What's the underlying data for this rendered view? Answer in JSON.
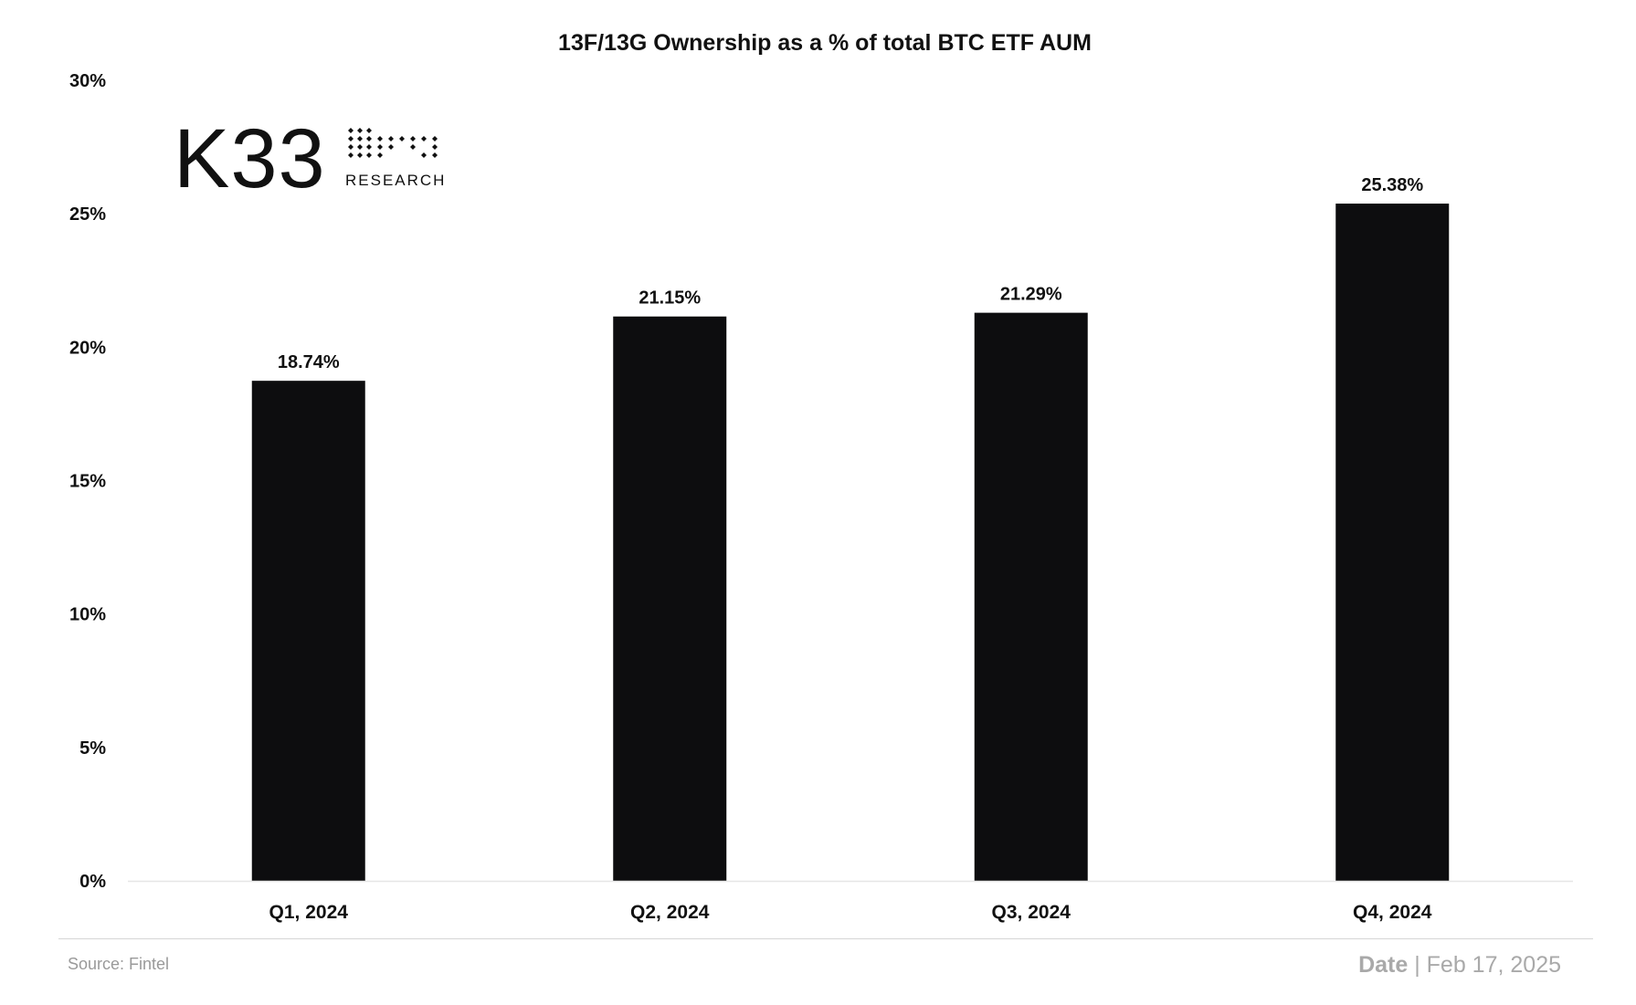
{
  "chart_data": {
    "type": "bar",
    "title": "13F/13G Ownership as a % of total BTC ETF AUM",
    "categories": [
      "Q1, 2024",
      "Q2, 2024",
      "Q3, 2024",
      "Q4, 2024"
    ],
    "values": [
      18.74,
      21.15,
      21.29,
      25.38
    ],
    "value_labels": [
      "18.74%",
      "21.15%",
      "21.29%",
      "25.38%"
    ],
    "xlabel": "",
    "ylabel": "",
    "ylim": [
      0,
      30
    ],
    "yticks": [
      0,
      5,
      10,
      15,
      20,
      25,
      30
    ],
    "ytick_labels": [
      "0%",
      "5%",
      "10%",
      "15%",
      "20%",
      "25%",
      "30%"
    ],
    "grid": false,
    "bar_color": "#0d0d0f"
  },
  "logo": {
    "mark": "K33",
    "sub": "RESEARCH"
  },
  "footer": {
    "source": "Source: Fintel",
    "date_label": "Date",
    "date_separator": "|",
    "date_value": "Feb 17, 2025"
  }
}
